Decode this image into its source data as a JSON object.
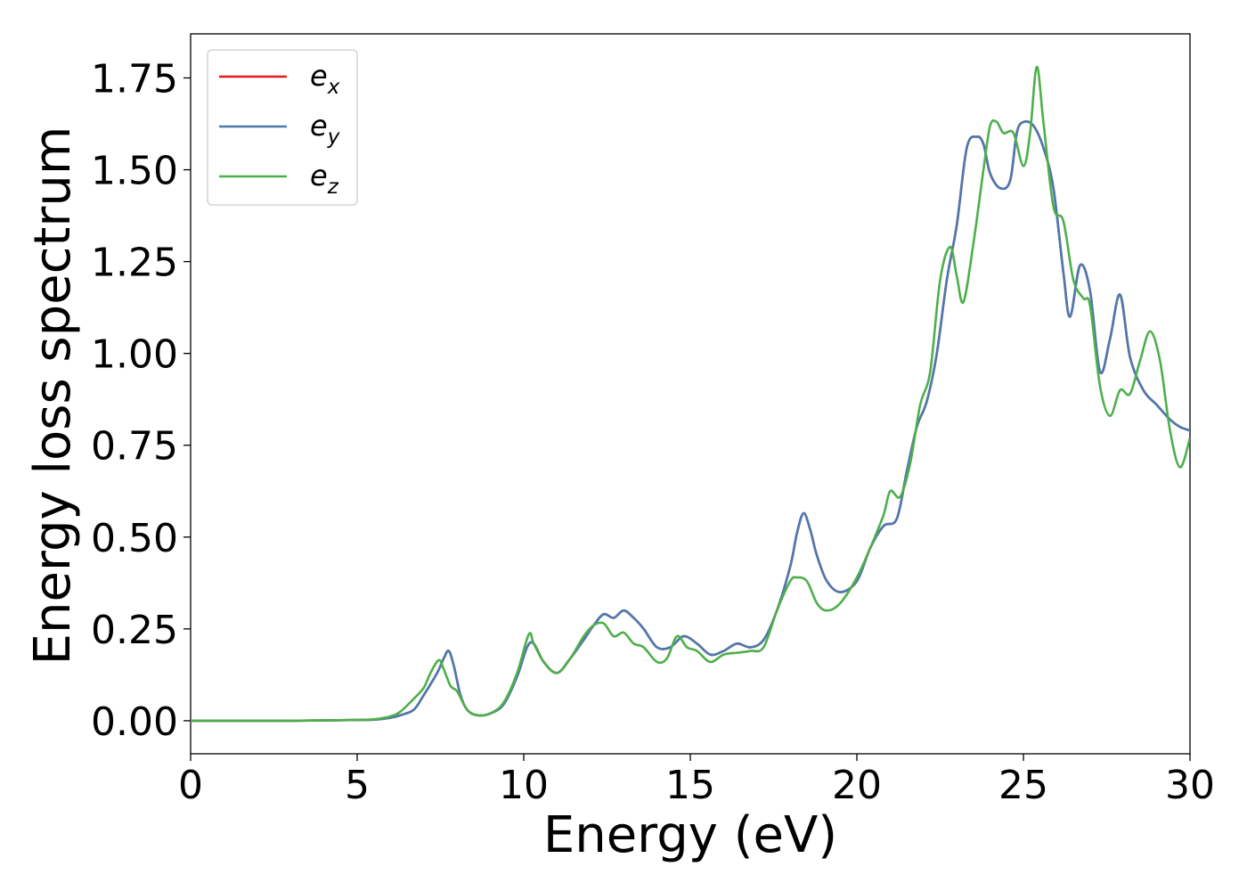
{
  "chart_data": {
    "type": "line",
    "title": "",
    "xlabel": "Energy (eV)",
    "ylabel": "Energy loss spectrum",
    "xlim": [
      0,
      30
    ],
    "ylim": [
      -0.09,
      1.87
    ],
    "xticks": [
      0,
      5,
      10,
      15,
      20,
      25,
      30
    ],
    "yticks": [
      0.0,
      0.25,
      0.5,
      0.75,
      1.0,
      1.25,
      1.5,
      1.75
    ],
    "xtick_labels": [
      "0",
      "5",
      "10",
      "15",
      "20",
      "25",
      "30"
    ],
    "ytick_labels": [
      "0.00",
      "0.25",
      "0.50",
      "0.75",
      "1.00",
      "1.25",
      "1.50",
      "1.75"
    ],
    "grid": false,
    "legend_position": "top-left",
    "series": [
      {
        "name": "e",
        "subscript": "x",
        "color": "#e41a1c",
        "x": [
          0,
          3,
          5,
          5.5,
          6,
          6.3,
          6.7,
          7.0,
          7.4,
          7.6,
          7.75,
          7.9,
          8.1,
          8.3,
          8.6,
          9.0,
          9.4,
          9.8,
          10.1,
          10.3,
          10.6,
          11.0,
          11.4,
          11.8,
          12.1,
          12.4,
          12.7,
          13.0,
          13.3,
          13.6,
          14.0,
          14.4,
          14.8,
          15.2,
          15.6,
          16.0,
          16.4,
          16.8,
          17.2,
          17.6,
          18.0,
          18.2,
          18.4,
          18.6,
          18.8,
          19.1,
          19.5,
          20.0,
          20.4,
          20.8,
          21.2,
          21.5,
          21.8,
          22.1,
          22.4,
          22.7,
          23.0,
          23.3,
          23.6,
          23.8,
          24.0,
          24.3,
          24.6,
          24.8,
          25.0,
          25.3,
          25.6,
          25.9,
          26.2,
          26.4,
          26.7,
          27.0,
          27.3,
          27.6,
          27.9,
          28.2,
          28.6,
          29.0,
          29.4,
          29.7,
          30.0
        ],
        "y": [
          0,
          0,
          0.002,
          0.003,
          0.008,
          0.015,
          0.03,
          0.07,
          0.13,
          0.17,
          0.19,
          0.15,
          0.07,
          0.03,
          0.015,
          0.02,
          0.045,
          0.12,
          0.2,
          0.21,
          0.16,
          0.13,
          0.17,
          0.22,
          0.26,
          0.29,
          0.28,
          0.3,
          0.28,
          0.25,
          0.2,
          0.2,
          0.23,
          0.21,
          0.18,
          0.19,
          0.21,
          0.2,
          0.22,
          0.3,
          0.42,
          0.51,
          0.565,
          0.52,
          0.45,
          0.38,
          0.35,
          0.38,
          0.47,
          0.53,
          0.55,
          0.68,
          0.8,
          0.87,
          1.0,
          1.2,
          1.35,
          1.56,
          1.59,
          1.57,
          1.49,
          1.45,
          1.47,
          1.6,
          1.63,
          1.62,
          1.56,
          1.45,
          1.22,
          1.1,
          1.24,
          1.17,
          0.95,
          1.04,
          1.16,
          0.99,
          0.9,
          0.86,
          0.82,
          0.8,
          0.79
        ]
      },
      {
        "name": "e",
        "subscript": "y",
        "color": "#4a7ab0",
        "x": [
          0,
          3,
          5,
          5.5,
          6,
          6.3,
          6.7,
          7.0,
          7.4,
          7.6,
          7.75,
          7.9,
          8.1,
          8.3,
          8.6,
          9.0,
          9.4,
          9.8,
          10.1,
          10.3,
          10.6,
          11.0,
          11.4,
          11.8,
          12.1,
          12.4,
          12.7,
          13.0,
          13.3,
          13.6,
          14.0,
          14.4,
          14.8,
          15.2,
          15.6,
          16.0,
          16.4,
          16.8,
          17.2,
          17.6,
          18.0,
          18.2,
          18.4,
          18.6,
          18.8,
          19.1,
          19.5,
          20.0,
          20.4,
          20.8,
          21.2,
          21.5,
          21.8,
          22.1,
          22.4,
          22.7,
          23.0,
          23.3,
          23.6,
          23.8,
          24.0,
          24.3,
          24.6,
          24.8,
          25.0,
          25.3,
          25.6,
          25.9,
          26.2,
          26.4,
          26.7,
          27.0,
          27.3,
          27.6,
          27.9,
          28.2,
          28.6,
          29.0,
          29.4,
          29.7,
          30.0
        ],
        "y": [
          0,
          0,
          0.002,
          0.003,
          0.008,
          0.015,
          0.03,
          0.07,
          0.13,
          0.17,
          0.19,
          0.15,
          0.07,
          0.03,
          0.015,
          0.02,
          0.045,
          0.12,
          0.2,
          0.21,
          0.16,
          0.13,
          0.17,
          0.22,
          0.26,
          0.29,
          0.28,
          0.3,
          0.28,
          0.25,
          0.2,
          0.2,
          0.23,
          0.21,
          0.18,
          0.19,
          0.21,
          0.2,
          0.22,
          0.3,
          0.42,
          0.51,
          0.565,
          0.52,
          0.45,
          0.38,
          0.35,
          0.38,
          0.47,
          0.53,
          0.55,
          0.68,
          0.8,
          0.87,
          1.0,
          1.2,
          1.35,
          1.56,
          1.59,
          1.57,
          1.49,
          1.45,
          1.47,
          1.6,
          1.63,
          1.62,
          1.56,
          1.45,
          1.22,
          1.1,
          1.24,
          1.17,
          0.95,
          1.04,
          1.16,
          0.99,
          0.9,
          0.86,
          0.82,
          0.8,
          0.79
        ]
      },
      {
        "name": "e",
        "subscript": "z",
        "color": "#4daf4a",
        "x": [
          0,
          3,
          5,
          5.5,
          6,
          6.3,
          6.7,
          7.0,
          7.2,
          7.45,
          7.6,
          7.8,
          8.0,
          8.3,
          8.6,
          9.0,
          9.4,
          9.8,
          10.15,
          10.3,
          10.6,
          11.0,
          11.4,
          11.8,
          12.1,
          12.4,
          12.7,
          13.0,
          13.3,
          13.6,
          14.0,
          14.3,
          14.6,
          14.9,
          15.2,
          15.6,
          16.0,
          16.4,
          16.8,
          17.2,
          17.6,
          18.0,
          18.2,
          18.5,
          18.8,
          19.1,
          19.5,
          20.0,
          20.4,
          20.8,
          21.0,
          21.3,
          21.6,
          21.9,
          22.2,
          22.5,
          22.8,
          23.0,
          23.2,
          23.5,
          23.8,
          24.0,
          24.2,
          24.4,
          24.7,
          25.0,
          25.2,
          25.4,
          25.6,
          25.9,
          26.2,
          26.5,
          26.8,
          27.0,
          27.3,
          27.6,
          27.9,
          28.2,
          28.5,
          28.8,
          29.1,
          29.4,
          29.7,
          30.0
        ],
        "y": [
          0,
          0,
          0.002,
          0.004,
          0.012,
          0.025,
          0.06,
          0.09,
          0.13,
          0.165,
          0.14,
          0.095,
          0.08,
          0.03,
          0.015,
          0.02,
          0.05,
          0.13,
          0.235,
          0.21,
          0.16,
          0.13,
          0.17,
          0.23,
          0.26,
          0.265,
          0.23,
          0.24,
          0.21,
          0.2,
          0.16,
          0.17,
          0.23,
          0.2,
          0.19,
          0.16,
          0.18,
          0.185,
          0.19,
          0.2,
          0.3,
          0.38,
          0.39,
          0.38,
          0.32,
          0.3,
          0.32,
          0.39,
          0.47,
          0.56,
          0.625,
          0.61,
          0.7,
          0.86,
          0.95,
          1.2,
          1.29,
          1.21,
          1.14,
          1.3,
          1.5,
          1.62,
          1.63,
          1.6,
          1.6,
          1.51,
          1.6,
          1.78,
          1.63,
          1.4,
          1.36,
          1.2,
          1.15,
          1.13,
          0.91,
          0.83,
          0.9,
          0.89,
          0.98,
          1.06,
          0.98,
          0.79,
          0.69,
          0.77
        ]
      }
    ]
  }
}
